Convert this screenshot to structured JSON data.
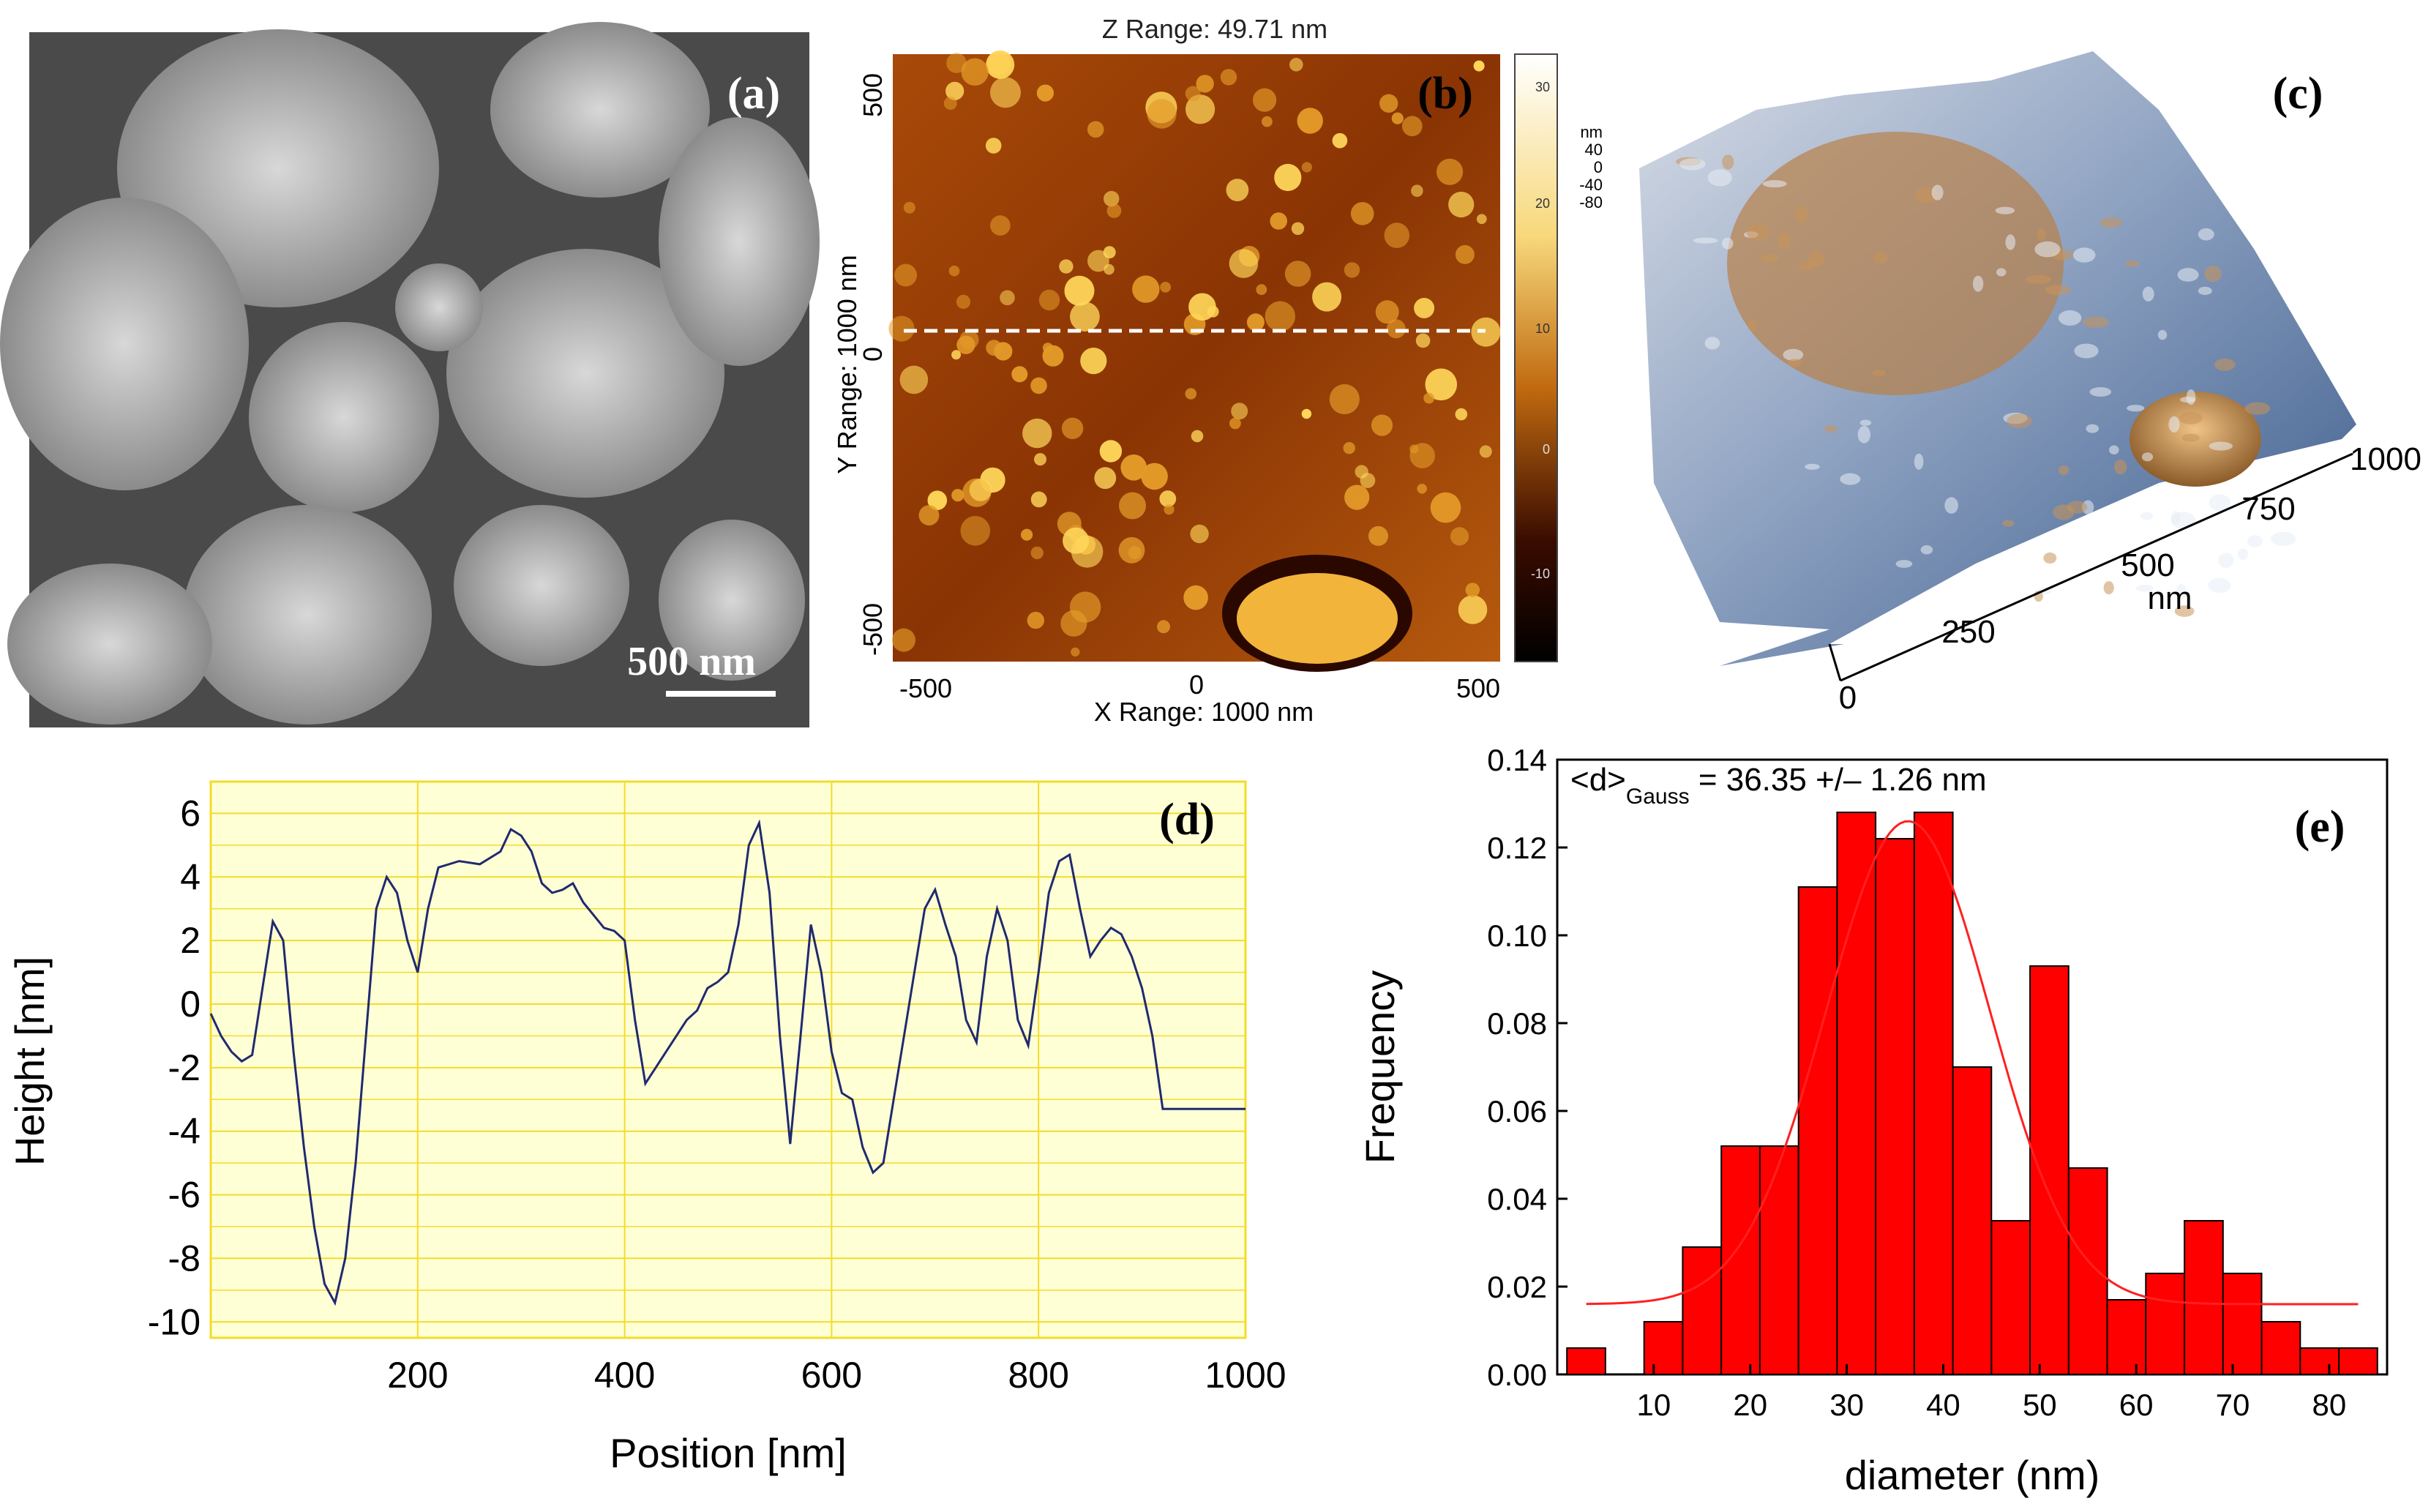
{
  "panels": {
    "a": {
      "label": "(a)",
      "scale_bar": "500 nm"
    },
    "b": {
      "label": "(b)",
      "title": "Z Range:  49.71 nm",
      "xlabel": "X Range: 1000 nm",
      "ylabel": "Y Range: 1000 nm",
      "x_ticks": [
        "-500",
        "0",
        "500"
      ],
      "y_ticks": [
        "500",
        "0",
        "-500"
      ],
      "colorbar_ticks": [
        "30",
        "20",
        "10",
        "0",
        "-10"
      ]
    },
    "c": {
      "label": "(c)",
      "z_unit": "nm",
      "z_ticks": [
        "40",
        "0",
        "-40",
        "-80"
      ],
      "x_ticks": [
        "0",
        "250",
        "500",
        "750",
        "1000"
      ],
      "x_unit": "nm"
    },
    "d": {
      "label": "(d)"
    },
    "e": {
      "label": "(e)",
      "annotation_prefix": "<d>",
      "annotation_sub": "Gauss",
      "annotation_value": " = 36.35 +/– 1.26 nm"
    }
  },
  "colors": {
    "bar": "#ff0000",
    "fit": "#ff2020",
    "profile": "#1f2a6e",
    "plot_bg": "#ffffd6",
    "grid": "#f2dc2a",
    "afm_dark": "#5a1e00",
    "afm_light": "#f0b020"
  },
  "chart_data": [
    {
      "panel": "d",
      "type": "line",
      "xlabel": "Position [nm]",
      "ylabel": "Height [nm]",
      "xlim": [
        0,
        1000
      ],
      "ylim": [
        -10.5,
        7
      ],
      "x_ticks": [
        "200",
        "400",
        "600",
        "800",
        "1000"
      ],
      "y_ticks": [
        "6",
        "4",
        "2",
        "0",
        "-2",
        "-4",
        "-6",
        "-8",
        "-10"
      ],
      "grid": true,
      "series": [
        {
          "x": [
            0,
            10,
            20,
            30,
            40,
            50,
            60,
            70,
            80,
            90,
            100,
            110,
            120,
            130,
            140,
            150,
            160,
            170,
            180,
            190,
            200,
            210,
            220,
            240,
            260,
            280,
            290,
            300,
            310,
            320,
            330,
            340,
            350,
            360,
            370,
            380,
            390,
            400,
            410,
            420,
            430,
            440,
            450,
            460,
            470,
            480,
            490,
            500,
            510,
            520,
            530,
            540,
            550,
            560,
            570,
            580,
            590,
            600,
            610,
            620,
            630,
            640,
            650,
            660,
            670,
            680,
            690,
            700,
            710,
            720,
            730,
            740,
            750,
            760,
            770,
            780,
            790,
            800,
            810,
            820,
            830,
            840,
            850,
            860,
            870,
            880,
            890,
            900,
            910,
            920,
            930,
            940,
            950,
            960,
            970,
            980,
            990,
            1000
          ],
          "y": [
            -0.3,
            -1.0,
            -1.5,
            -1.8,
            -1.6,
            0.5,
            2.6,
            2.0,
            -1.5,
            -4.5,
            -7.0,
            -8.8,
            -9.4,
            -8.0,
            -5.0,
            -1.0,
            3.0,
            4.0,
            3.5,
            2.0,
            1.0,
            3.0,
            4.3,
            4.5,
            4.4,
            4.8,
            5.5,
            5.3,
            4.8,
            3.8,
            3.5,
            3.6,
            3.8,
            3.2,
            2.8,
            2.4,
            2.3,
            2.0,
            -0.5,
            -2.5,
            -2.0,
            -1.5,
            -1.0,
            -0.5,
            -0.2,
            0.5,
            0.7,
            1.0,
            2.5,
            5.0,
            5.7,
            3.5,
            -1.0,
            -4.4,
            -1.0,
            2.5,
            1.0,
            -1.5,
            -2.8,
            -3.0,
            -4.5,
            -5.3,
            -5.0,
            -3.0,
            -1.0,
            1.0,
            3.0,
            3.6,
            2.5,
            1.5,
            -0.5,
            -1.2,
            1.5,
            3.0,
            2.0,
            -0.5,
            -1.3,
            1.0,
            3.5,
            4.5,
            4.7,
            3.0,
            1.5,
            2.0,
            2.4,
            2.2,
            1.5,
            0.5,
            -1.0,
            -3.3,
            -3.3,
            -3.3,
            -3.3,
            -3.3,
            -3.3,
            -3.3,
            -3.3,
            -3.3
          ]
        }
      ]
    },
    {
      "panel": "e",
      "type": "bar",
      "xlabel": "diameter (nm)",
      "ylabel": "Frequency",
      "xlim": [
        0,
        86
      ],
      "ylim": [
        0,
        0.14
      ],
      "x_ticks": [
        "10",
        "20",
        "30",
        "40",
        "50",
        "60",
        "70",
        "80"
      ],
      "y_ticks": [
        "0.00",
        "0.02",
        "0.04",
        "0.06",
        "0.08",
        "0.10",
        "0.12",
        "0.14"
      ],
      "bin_width": 4,
      "bin_centers": [
        3,
        7,
        11,
        15,
        19,
        23,
        27,
        31,
        35,
        39,
        43,
        47,
        51,
        55,
        59,
        63,
        67,
        71,
        75,
        79,
        83
      ],
      "values": [
        0.006,
        0.0,
        0.012,
        0.029,
        0.052,
        0.052,
        0.111,
        0.128,
        0.122,
        0.128,
        0.07,
        0.035,
        0.093,
        0.047,
        0.017,
        0.023,
        0.035,
        0.023,
        0.012,
        0.006,
        0.006
      ],
      "fit": {
        "type": "gauss",
        "center": 36.35,
        "y0": 0.016,
        "amplitude": 0.11,
        "sigma": 8.5
      }
    }
  ]
}
